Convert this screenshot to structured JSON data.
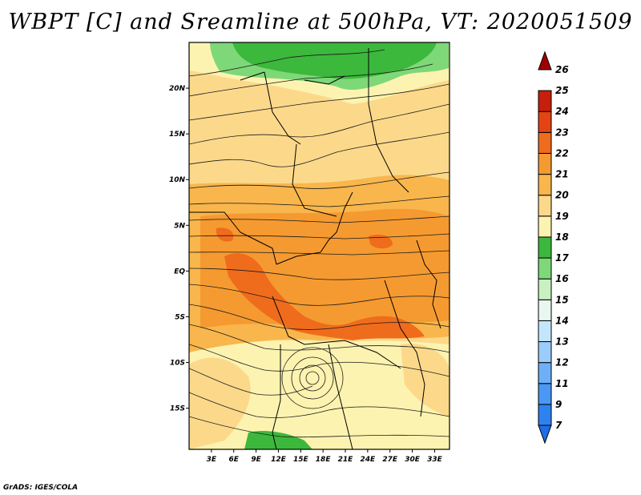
{
  "title": "WBPT [C] and Sreamline at 500hPa, VT: 2020051509",
  "footer": "GrADS: IGES/COLA",
  "map": {
    "lat_labels": [
      "20N",
      "15N",
      "10N",
      "5N",
      "EQ",
      "5S",
      "10S",
      "15S"
    ],
    "lat_values": [
      20,
      15,
      10,
      5,
      0,
      -5,
      -10,
      -15
    ],
    "lon_labels": [
      "3E",
      "6E",
      "9E",
      "12E",
      "15E",
      "18E",
      "21E",
      "24E",
      "27E",
      "30E",
      "33E"
    ],
    "lon_values": [
      3,
      6,
      9,
      12,
      15,
      18,
      21,
      24,
      27,
      30,
      33
    ],
    "lon_range": [
      0,
      35
    ],
    "lat_range": [
      -19.5,
      25
    ]
  },
  "colorbar": {
    "labels": [
      "7",
      "9",
      "11",
      "12",
      "13",
      "14",
      "15",
      "16",
      "17",
      "18",
      "19",
      "20",
      "21",
      "22",
      "23",
      "24",
      "25",
      "26"
    ],
    "colors": [
      "#1e6ee6",
      "#2e82f0",
      "#4a98f5",
      "#6db0f8",
      "#9acdfb",
      "#c4e6fd",
      "#e8f8f0",
      "#c8f0c0",
      "#7ed878",
      "#3cb83c",
      "#fdf3b0",
      "#fcd98a",
      "#f8b64c",
      "#f59a30",
      "#ef6c1c",
      "#e44414",
      "#c81e0c",
      "#a00000"
    ]
  },
  "colors": {
    "frame": "#000000",
    "streamline": "#1a1a1a"
  }
}
